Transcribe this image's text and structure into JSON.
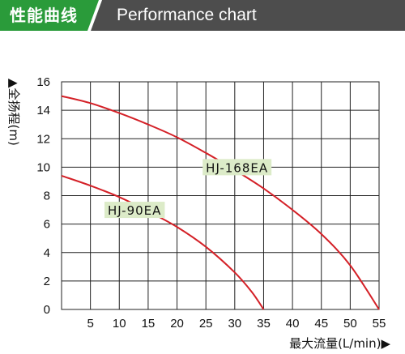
{
  "header": {
    "title_cn": "性能曲线",
    "title_en": "Performance chart",
    "colors": {
      "green": "#2a9b3a",
      "gray": "#4d4d4d"
    }
  },
  "chart_data": {
    "type": "line",
    "ylabel": "▲全扬程(m)",
    "xlabel": "最大流量(L/min)▶",
    "xlim": [
      0,
      55
    ],
    "ylim": [
      0,
      16
    ],
    "x_ticks": [
      5,
      10,
      15,
      20,
      25,
      30,
      35,
      40,
      45,
      50,
      55
    ],
    "y_ticks": [
      0,
      2,
      4,
      6,
      8,
      10,
      12,
      14,
      16
    ],
    "grid": true,
    "series": [
      {
        "name": "HJ-168EA",
        "color": "#d42027",
        "label_bg": "#dcebc8",
        "label_at": [
          25,
          10
        ],
        "points": [
          [
            0,
            15.0
          ],
          [
            5,
            14.5
          ],
          [
            10,
            13.8
          ],
          [
            15,
            13.0
          ],
          [
            20,
            12.1
          ],
          [
            25,
            11.0
          ],
          [
            30,
            9.8
          ],
          [
            35,
            8.5
          ],
          [
            40,
            7.0
          ],
          [
            45,
            5.3
          ],
          [
            50,
            3.1
          ],
          [
            55,
            0
          ]
        ]
      },
      {
        "name": "HJ-90EA",
        "color": "#d42027",
        "label_bg": "#dcebc8",
        "label_at": [
          8,
          7
        ],
        "points": [
          [
            0,
            9.4
          ],
          [
            5,
            8.7
          ],
          [
            10,
            7.9
          ],
          [
            15,
            6.9
          ],
          [
            20,
            5.8
          ],
          [
            25,
            4.4
          ],
          [
            30,
            2.6
          ],
          [
            33,
            1.2
          ],
          [
            35,
            0
          ]
        ]
      }
    ]
  }
}
